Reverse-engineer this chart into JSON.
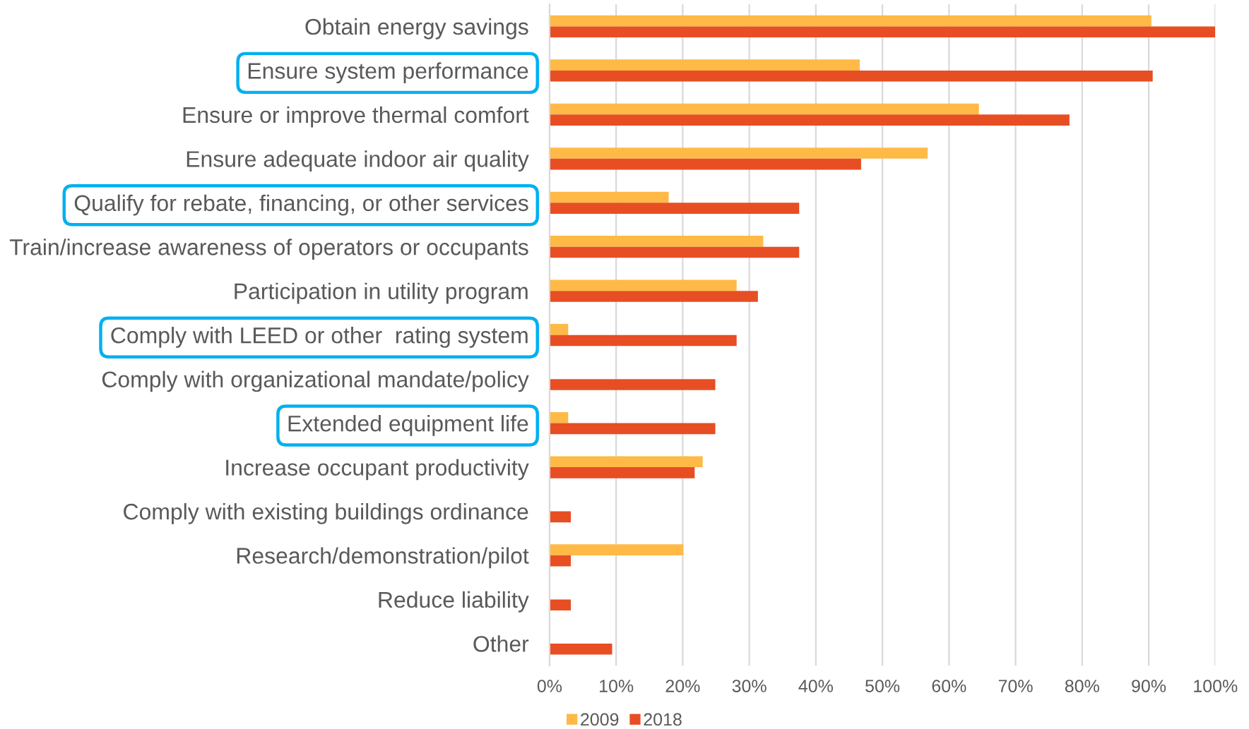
{
  "chart_data": {
    "type": "bar",
    "orientation": "horizontal",
    "categories": [
      "Obtain energy savings",
      "Ensure system performance",
      "Ensure or improve thermal comfort",
      "Ensure adequate indoor air quality",
      "Qualify for rebate, financing, or other services",
      "Train/increase awareness of operators or occupants",
      "Participation in utility program",
      "Comply with LEED or other  rating system",
      "Comply with organizational mandate/policy",
      "Extended equipment life",
      "Increase occupant productivity",
      "Comply with existing buildings ordinance",
      "Research/demonstration/pilot",
      "Reduce liability",
      "Other"
    ],
    "series": [
      {
        "name": "2009",
        "color": "#ffb946",
        "values": [
          90.4,
          46.6,
          64.5,
          56.8,
          17.9,
          32.1,
          28.1,
          2.8,
          null,
          2.8,
          23.0,
          null,
          20.1,
          null,
          null
        ]
      },
      {
        "name": "2018",
        "color": "#e84e23",
        "values": [
          100,
          90.6,
          78.1,
          46.8,
          37.5,
          37.5,
          31.3,
          28.1,
          24.9,
          24.9,
          21.8,
          3.2,
          3.2,
          3.2,
          9.4
        ]
      }
    ],
    "xlim": [
      0,
      100
    ],
    "xticks": [
      {
        "value": 0,
        "label": "0%"
      },
      {
        "value": 10,
        "label": "10%"
      },
      {
        "value": 20,
        "label": "20%"
      },
      {
        "value": 30,
        "label": "30%"
      },
      {
        "value": 40,
        "label": "40%"
      },
      {
        "value": 50,
        "label": "50%"
      },
      {
        "value": 60,
        "label": "60%"
      },
      {
        "value": 70,
        "label": "70%"
      },
      {
        "value": 80,
        "label": "80%"
      },
      {
        "value": 90,
        "label": "90%"
      },
      {
        "value": 100,
        "label": "100%"
      }
    ],
    "grid": "x",
    "legend": "bottom"
  }
}
